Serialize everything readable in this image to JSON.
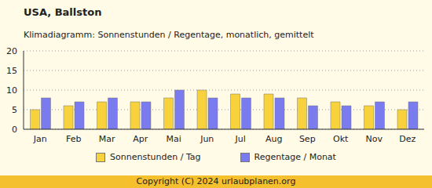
{
  "chart_data": {
    "type": "bar",
    "title": "USA, Ballston",
    "subtitle": "Klimadiagramm: Sonnenstunden / Regentage, monatlich, gemittelt",
    "footer": "Copyright (C) 2024 urlaubplanen.org",
    "categories": [
      "Jan",
      "Feb",
      "Mar",
      "Apr",
      "Mai",
      "Jun",
      "Jul",
      "Aug",
      "Sep",
      "Okt",
      "Nov",
      "Dez"
    ],
    "series": [
      {
        "name": "Sonnenstunden / Tag",
        "color": "#f8d23c",
        "values": [
          5,
          6,
          7,
          7,
          8,
          10,
          9,
          9,
          8,
          7,
          6,
          5
        ]
      },
      {
        "name": "Regentage / Monat",
        "color": "#7b7bf0",
        "values": [
          8,
          7,
          8,
          7,
          10,
          8,
          8,
          8,
          6,
          6,
          7,
          7
        ]
      }
    ],
    "ylim": [
      0,
      20
    ],
    "yticks": [
      0,
      5,
      10,
      15,
      20
    ],
    "grid": true,
    "legend": "bottom"
  }
}
